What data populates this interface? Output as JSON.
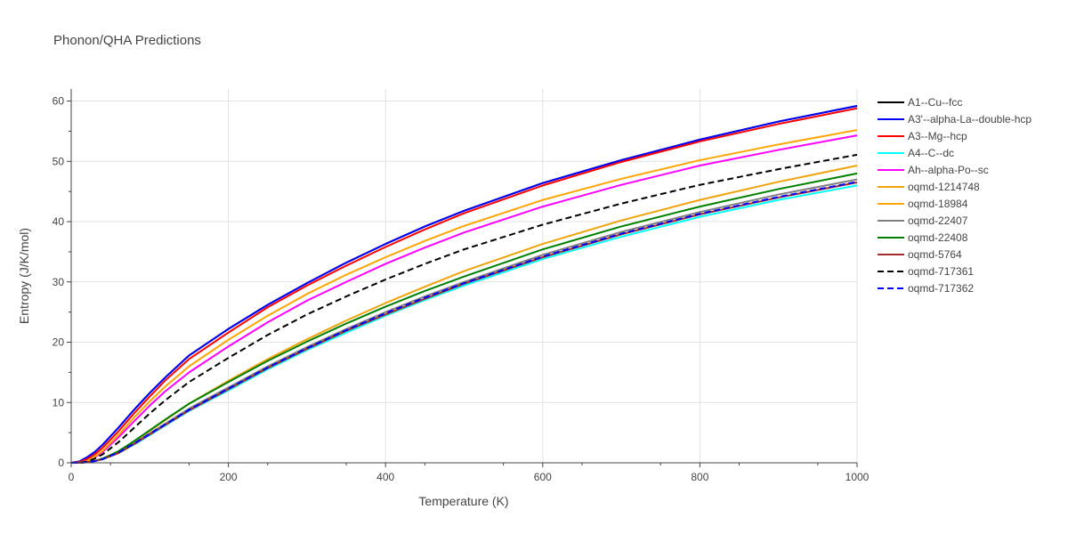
{
  "chart_data": {
    "type": "line",
    "title": "Phonon/QHA Predictions",
    "xlabel": "Temperature (K)",
    "ylabel": "Entropy (J/K/mol)",
    "xlim": [
      0,
      1000
    ],
    "ylim": [
      0,
      62
    ],
    "xticks": [
      0,
      200,
      400,
      600,
      800,
      1000
    ],
    "yticks": [
      0,
      10,
      20,
      30,
      40,
      50,
      60
    ],
    "grid": true,
    "legend_position": "right",
    "series": [
      {
        "name": "A1--Cu--fcc",
        "color": "#000000",
        "dash": "solid",
        "x": [
          0,
          10,
          20,
          30,
          40,
          60,
          80,
          100,
          120,
          150,
          200,
          250,
          300,
          350,
          400,
          450,
          500,
          600,
          700,
          800,
          900,
          1000
        ],
        "y": [
          0,
          0.2,
          0.9,
          1.8,
          3.0,
          5.8,
          8.8,
          11.6,
          14.2,
          17.8,
          22.2,
          26.2,
          29.8,
          33.2,
          36.3,
          39.2,
          41.8,
          46.4,
          50.2,
          53.6,
          56.6,
          59.2
        ]
      },
      {
        "name": "A3'--alpha-La--double-hcp",
        "color": "#0000ff",
        "dash": "solid",
        "x": [
          0,
          10,
          20,
          30,
          40,
          60,
          80,
          100,
          120,
          150,
          200,
          250,
          300,
          350,
          400,
          450,
          500,
          600,
          700,
          800,
          900,
          1000
        ],
        "y": [
          0,
          0.2,
          0.9,
          1.8,
          3.0,
          5.8,
          8.8,
          11.6,
          14.2,
          17.8,
          22.2,
          26.2,
          29.8,
          33.2,
          36.3,
          39.2,
          41.8,
          46.4,
          50.2,
          53.6,
          56.6,
          59.2
        ]
      },
      {
        "name": "A3--Mg--hcp",
        "color": "#ff0000",
        "dash": "solid",
        "x": [
          0,
          10,
          20,
          30,
          40,
          60,
          80,
          100,
          120,
          150,
          200,
          250,
          300,
          350,
          400,
          450,
          500,
          600,
          700,
          800,
          900,
          1000
        ],
        "y": [
          0,
          0.1,
          0.6,
          1.4,
          2.5,
          5.2,
          8.2,
          11.0,
          13.7,
          17.2,
          21.6,
          25.8,
          29.4,
          32.7,
          35.8,
          38.7,
          41.4,
          46.0,
          49.9,
          53.3,
          56.2,
          58.8
        ]
      },
      {
        "name": "A4--C--dc",
        "color": "#00ffff",
        "dash": "solid",
        "x": [
          0,
          10,
          20,
          30,
          40,
          60,
          80,
          100,
          120,
          150,
          200,
          250,
          300,
          350,
          400,
          450,
          500,
          600,
          700,
          800,
          900,
          1000
        ],
        "y": [
          0,
          0,
          0.1,
          0.3,
          0.6,
          1.6,
          3.0,
          4.6,
          6.2,
          8.6,
          12.0,
          15.5,
          18.7,
          21.6,
          24.4,
          27.0,
          29.4,
          33.8,
          37.5,
          40.8,
          43.6,
          46.0
        ]
      },
      {
        "name": "Ah--alpha-Po--sc",
        "color": "#ff00ff",
        "dash": "solid",
        "x": [
          0,
          10,
          20,
          30,
          40,
          60,
          80,
          100,
          120,
          150,
          200,
          250,
          300,
          350,
          400,
          450,
          500,
          600,
          700,
          800,
          900,
          1000
        ],
        "y": [
          0,
          0,
          0.3,
          0.9,
          1.8,
          4.2,
          6.9,
          9.5,
          11.9,
          15.0,
          19.3,
          23.3,
          26.9,
          30.0,
          33.0,
          35.7,
          38.2,
          42.5,
          46.1,
          49.3,
          51.9,
          54.3
        ]
      },
      {
        "name": "oqmd-1214748",
        "color": "#f0a30a",
        "dash": "solid",
        "x": [
          0,
          10,
          20,
          30,
          40,
          60,
          80,
          100,
          120,
          150,
          200,
          250,
          300,
          350,
          400,
          450,
          500,
          600,
          700,
          800,
          900,
          1000
        ],
        "y": [
          0,
          0,
          0.1,
          0.3,
          0.7,
          1.9,
          3.5,
          5.3,
          7.1,
          9.8,
          13.6,
          17.2,
          20.5,
          23.6,
          26.5,
          29.2,
          31.8,
          36.3,
          40.2,
          43.6,
          46.6,
          49.3
        ]
      },
      {
        "name": "oqmd-18984",
        "color": "#ffa500",
        "dash": "solid",
        "x": [
          0,
          10,
          20,
          30,
          40,
          60,
          80,
          100,
          120,
          150,
          200,
          250,
          300,
          350,
          400,
          450,
          500,
          600,
          700,
          800,
          900,
          1000
        ],
        "y": [
          0,
          0,
          0.3,
          1.0,
          2.0,
          4.6,
          7.5,
          10.2,
          12.7,
          16.0,
          20.4,
          24.4,
          28.0,
          31.2,
          34.1,
          36.8,
          39.3,
          43.6,
          47.1,
          50.2,
          52.8,
          55.2
        ]
      },
      {
        "name": "oqmd-22407",
        "color": "#808080",
        "dash": "solid",
        "x": [
          0,
          10,
          20,
          30,
          40,
          60,
          80,
          100,
          120,
          150,
          200,
          250,
          300,
          350,
          400,
          450,
          500,
          600,
          700,
          800,
          900,
          1000
        ],
        "y": [
          0,
          0,
          0.1,
          0.3,
          0.6,
          1.7,
          3.2,
          4.9,
          6.5,
          9.0,
          12.5,
          16.0,
          19.2,
          22.2,
          25.0,
          27.6,
          30.0,
          34.5,
          38.3,
          41.6,
          44.5,
          47.0
        ]
      },
      {
        "name": "oqmd-22408",
        "color": "#008000",
        "dash": "solid",
        "x": [
          0,
          10,
          20,
          30,
          40,
          60,
          80,
          100,
          120,
          150,
          200,
          250,
          300,
          350,
          400,
          450,
          500,
          600,
          700,
          800,
          900,
          1000
        ],
        "y": [
          0,
          0,
          0.1,
          0.3,
          0.7,
          1.9,
          3.6,
          5.4,
          7.2,
          9.8,
          13.4,
          16.9,
          20.1,
          23.1,
          25.9,
          28.5,
          30.9,
          35.4,
          39.2,
          42.5,
          45.4,
          48.0
        ]
      },
      {
        "name": "oqmd-5764",
        "color": "#a52a2a",
        "dash": "solid",
        "x": [
          0,
          10,
          20,
          30,
          40,
          60,
          80,
          100,
          120,
          150,
          200,
          250,
          300,
          350,
          400,
          450,
          500,
          600,
          700,
          800,
          900,
          1000
        ],
        "y": [
          0,
          0,
          0.1,
          0.3,
          0.6,
          1.6,
          3.1,
          4.7,
          6.3,
          8.7,
          12.2,
          15.7,
          18.9,
          21.9,
          24.6,
          27.2,
          29.7,
          34.1,
          37.9,
          41.2,
          44.0,
          46.5
        ]
      },
      {
        "name": "oqmd-717361",
        "color": "#000000",
        "dash": "dash",
        "x": [
          0,
          10,
          20,
          30,
          40,
          60,
          80,
          100,
          120,
          150,
          200,
          250,
          300,
          350,
          400,
          450,
          500,
          600,
          700,
          800,
          900,
          1000
        ],
        "y": [
          0,
          0,
          0.2,
          0.7,
          1.4,
          3.4,
          5.8,
          8.2,
          10.4,
          13.4,
          17.4,
          21.2,
          24.6,
          27.6,
          30.4,
          33.0,
          35.4,
          39.5,
          43.0,
          46.1,
          48.7,
          51.1
        ]
      },
      {
        "name": "oqmd-717362",
        "color": "#0000ff",
        "dash": "dash",
        "x": [
          0,
          10,
          20,
          30,
          40,
          60,
          80,
          100,
          120,
          150,
          200,
          250,
          300,
          350,
          400,
          450,
          500,
          600,
          700,
          800,
          900,
          1000
        ],
        "y": [
          0,
          0,
          0.1,
          0.3,
          0.6,
          1.7,
          3.2,
          4.8,
          6.4,
          8.8,
          12.3,
          15.8,
          19.0,
          22.0,
          24.8,
          27.4,
          29.8,
          34.2,
          38.0,
          41.3,
          44.1,
          46.6
        ]
      }
    ]
  }
}
